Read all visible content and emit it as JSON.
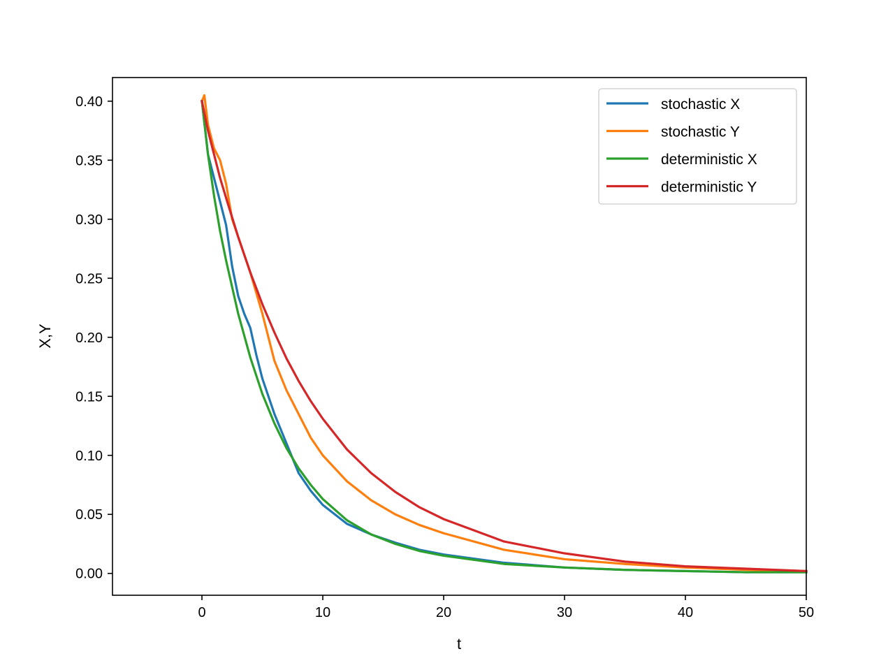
{
  "chart_data": {
    "type": "line",
    "title": "",
    "xlabel": "t",
    "ylabel": "X,Y",
    "xlim": [
      -7.4,
      50
    ],
    "ylim": [
      -0.0185,
      0.42
    ],
    "xticks": [
      0,
      10,
      20,
      30,
      40,
      50
    ],
    "xtick_labels": [
      "0",
      "10",
      "20",
      "30",
      "40",
      "50"
    ],
    "yticks": [
      0.0,
      0.05,
      0.1,
      0.15,
      0.2,
      0.25,
      0.3,
      0.35,
      0.4
    ],
    "ytick_labels": [
      "0.00",
      "0.05",
      "0.10",
      "0.15",
      "0.20",
      "0.25",
      "0.30",
      "0.35",
      "0.40"
    ],
    "grid": false,
    "legend_position": "top-right",
    "series": [
      {
        "name": "stochastic X",
        "color": "#1f77b4",
        "x": [
          0,
          0.5,
          1,
          1.5,
          2,
          2.5,
          3,
          3.5,
          4,
          4.5,
          5,
          6,
          7,
          8,
          9,
          10,
          12,
          14,
          16,
          18,
          20,
          25,
          30,
          35,
          40,
          45,
          50
        ],
        "y": [
          0.4,
          0.355,
          0.335,
          0.315,
          0.295,
          0.26,
          0.235,
          0.22,
          0.208,
          0.185,
          0.165,
          0.135,
          0.11,
          0.085,
          0.07,
          0.058,
          0.042,
          0.033,
          0.026,
          0.02,
          0.016,
          0.009,
          0.005,
          0.003,
          0.002,
          0.001,
          0.001
        ]
      },
      {
        "name": "stochastic Y",
        "color": "#ff7f0e",
        "x": [
          0,
          0.2,
          0.5,
          1,
          1.5,
          2,
          2.5,
          3,
          3.5,
          4,
          5,
          6,
          7,
          8,
          9,
          10,
          12,
          14,
          16,
          18,
          20,
          25,
          30,
          35,
          40,
          45,
          50
        ],
        "y": [
          0.4,
          0.405,
          0.38,
          0.36,
          0.35,
          0.33,
          0.3,
          0.285,
          0.27,
          0.255,
          0.22,
          0.18,
          0.155,
          0.135,
          0.115,
          0.1,
          0.078,
          0.062,
          0.05,
          0.041,
          0.034,
          0.02,
          0.012,
          0.008,
          0.005,
          0.003,
          0.002
        ]
      },
      {
        "name": "deterministic X",
        "color": "#2ca02c",
        "x": [
          0,
          0.5,
          1,
          1.5,
          2,
          3,
          4,
          5,
          6,
          7,
          8,
          9,
          10,
          12,
          14,
          16,
          18,
          20,
          25,
          30,
          35,
          40,
          45,
          50
        ],
        "y": [
          0.4,
          0.355,
          0.32,
          0.29,
          0.265,
          0.22,
          0.183,
          0.152,
          0.127,
          0.106,
          0.089,
          0.075,
          0.063,
          0.045,
          0.033,
          0.025,
          0.019,
          0.015,
          0.008,
          0.005,
          0.003,
          0.002,
          0.001,
          0.001
        ]
      },
      {
        "name": "deterministic Y",
        "color": "#d62728",
        "x": [
          0,
          0.5,
          1,
          1.5,
          2,
          3,
          4,
          5,
          6,
          7,
          8,
          9,
          10,
          12,
          14,
          16,
          18,
          20,
          25,
          30,
          35,
          40,
          45,
          50
        ],
        "y": [
          0.4,
          0.375,
          0.355,
          0.335,
          0.318,
          0.285,
          0.255,
          0.228,
          0.204,
          0.182,
          0.163,
          0.146,
          0.131,
          0.105,
          0.085,
          0.069,
          0.056,
          0.046,
          0.027,
          0.017,
          0.01,
          0.006,
          0.004,
          0.002
        ]
      }
    ]
  }
}
